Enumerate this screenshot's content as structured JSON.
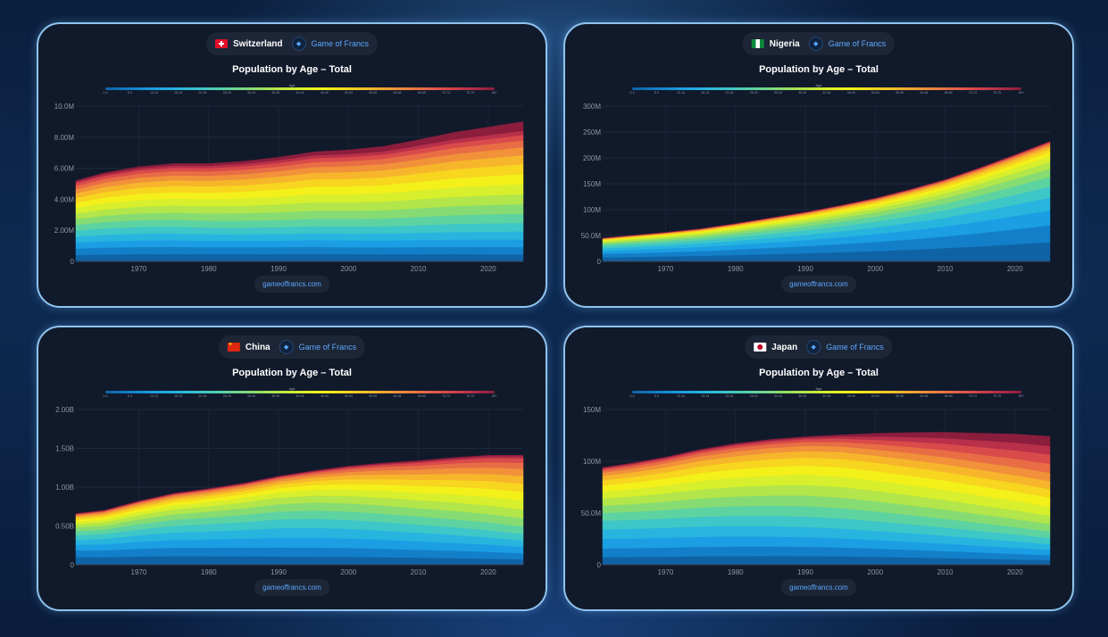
{
  "brand_label": "Game of Francs",
  "footer_url": "gameoffrancs.com",
  "chart_title": "Population by Age – Total",
  "legend_title": "Age",
  "age_groups": [
    "0-4",
    "5-9",
    "10-14",
    "15-19",
    "20-24",
    "25-29",
    "30-34",
    "35-39",
    "40-44",
    "45-49",
    "50-54",
    "55-59",
    "60-64",
    "65-69",
    "70-74",
    "75-79",
    "80+"
  ],
  "age_colors": [
    "#0f63a5",
    "#137fc8",
    "#1b9ee3",
    "#27b5e0",
    "#3ec7c8",
    "#5ed3a2",
    "#86dc72",
    "#b2e64a",
    "#d8ef2d",
    "#f4f01a",
    "#f8d51f",
    "#f7b52c",
    "#f1913a",
    "#e86d45",
    "#d94a4a",
    "#b8304a",
    "#8b1d3d"
  ],
  "chart_data": [
    {
      "country": "Switzerland",
      "type": "area",
      "stacked": true,
      "title": "Population by Age – Total",
      "x_ticks": [
        "1970",
        "1980",
        "1990",
        "2000",
        "2010",
        "2020"
      ],
      "x_range": [
        1961,
        2025
      ],
      "y_ticks": [
        "0",
        "2.00M",
        "4.00M",
        "6.00M",
        "8.00M",
        "10.0M"
      ],
      "y_range": [
        0,
        10000000
      ],
      "years": [
        1961,
        1965,
        1970,
        1975,
        1980,
        1985,
        1990,
        1995,
        2000,
        2005,
        2010,
        2015,
        2020,
        2025
      ],
      "totals": [
        5200000,
        5700000,
        6100000,
        6300000,
        6300000,
        6450000,
        6700000,
        7050000,
        7180000,
        7400000,
        7830000,
        8300000,
        8650000,
        9000000
      ],
      "shares": [
        [
          0.085,
          0.085,
          0.08,
          0.08,
          0.078,
          0.077,
          0.076,
          0.074,
          0.072,
          0.07,
          0.066,
          0.06,
          0.052,
          0.046,
          0.035,
          0.02,
          0.014
        ],
        [
          0.075,
          0.07,
          0.068,
          0.066,
          0.07,
          0.074,
          0.08,
          0.082,
          0.08,
          0.076,
          0.07,
          0.064,
          0.056,
          0.048,
          0.038,
          0.028,
          0.03
        ],
        [
          0.052,
          0.055,
          0.058,
          0.06,
          0.064,
          0.07,
          0.072,
          0.074,
          0.076,
          0.076,
          0.074,
          0.068,
          0.06,
          0.05,
          0.041,
          0.032,
          0.068
        ]
      ]
    },
    {
      "country": "Nigeria",
      "type": "area",
      "stacked": true,
      "title": "Population by Age – Total",
      "x_ticks": [
        "1970",
        "1980",
        "1990",
        "2000",
        "2010",
        "2020"
      ],
      "x_range": [
        1961,
        2025
      ],
      "y_ticks": [
        "0",
        "50.0M",
        "100M",
        "150M",
        "200M",
        "250M",
        "300M"
      ],
      "y_range": [
        0,
        300000000
      ],
      "years": [
        1961,
        1965,
        1970,
        1975,
        1980,
        1985,
        1990,
        1995,
        2000,
        2005,
        2010,
        2015,
        2020,
        2025
      ],
      "totals": [
        45000000,
        50000000,
        56000000,
        63000000,
        73000000,
        84000000,
        95000000,
        108000000,
        122000000,
        139000000,
        158000000,
        181000000,
        206000000,
        232000000
      ],
      "shares": [
        [
          0.18,
          0.15,
          0.13,
          0.11,
          0.095,
          0.08,
          0.067,
          0.055,
          0.045,
          0.035,
          0.027,
          0.02,
          0.014,
          0.01,
          0.006,
          0.003,
          0.002
        ],
        [
          0.17,
          0.148,
          0.128,
          0.11,
          0.095,
          0.082,
          0.069,
          0.057,
          0.047,
          0.037,
          0.028,
          0.021,
          0.015,
          0.011,
          0.007,
          0.004,
          0.002
        ],
        [
          0.165,
          0.145,
          0.128,
          0.11,
          0.096,
          0.083,
          0.07,
          0.058,
          0.048,
          0.038,
          0.029,
          0.022,
          0.016,
          0.011,
          0.007,
          0.004,
          0.002
        ]
      ]
    },
    {
      "country": "China",
      "type": "area",
      "stacked": true,
      "title": "Population by Age – Total",
      "x_ticks": [
        "1970",
        "1980",
        "1990",
        "2000",
        "2010",
        "2020"
      ],
      "x_range": [
        1961,
        2025
      ],
      "y_ticks": [
        "0",
        "0.50B",
        "1.00B",
        "1.50B",
        "2.00B"
      ],
      "y_range": [
        0,
        2000000000
      ],
      "years": [
        1961,
        1965,
        1970,
        1975,
        1980,
        1985,
        1990,
        1995,
        2000,
        2005,
        2010,
        2015,
        2020,
        2025
      ],
      "totals": [
        660000000,
        700000000,
        820000000,
        920000000,
        980000000,
        1050000000,
        1140000000,
        1210000000,
        1270000000,
        1310000000,
        1340000000,
        1380000000,
        1410000000,
        1410000000
      ],
      "shares": [
        [
          0.15,
          0.13,
          0.11,
          0.1,
          0.09,
          0.08,
          0.07,
          0.06,
          0.05,
          0.04,
          0.035,
          0.03,
          0.025,
          0.015,
          0.01,
          0.005,
          0.005
        ],
        [
          0.09,
          0.1,
          0.11,
          0.11,
          0.1,
          0.09,
          0.085,
          0.075,
          0.06,
          0.05,
          0.04,
          0.032,
          0.025,
          0.018,
          0.01,
          0.005,
          0.005
        ],
        [
          0.05,
          0.055,
          0.058,
          0.058,
          0.06,
          0.068,
          0.075,
          0.08,
          0.082,
          0.08,
          0.075,
          0.07,
          0.065,
          0.055,
          0.04,
          0.02,
          0.009
        ]
      ]
    },
    {
      "country": "Japan",
      "type": "area",
      "stacked": true,
      "title": "Population by Age – Total",
      "x_ticks": [
        "1970",
        "1980",
        "1990",
        "2000",
        "2010",
        "2020"
      ],
      "x_range": [
        1961,
        2025
      ],
      "y_ticks": [
        "0",
        "50.0M",
        "100M",
        "150M"
      ],
      "y_range": [
        0,
        150000000
      ],
      "years": [
        1961,
        1965,
        1970,
        1975,
        1980,
        1985,
        1990,
        1995,
        2000,
        2005,
        2010,
        2015,
        2020,
        2025
      ],
      "totals": [
        94000000,
        98000000,
        104000000,
        111500000,
        117000000,
        121000000,
        123600000,
        125400000,
        126900000,
        127700000,
        128000000,
        127100000,
        126200000,
        124000000
      ],
      "shares": [
        [
          0.08,
          0.09,
          0.1,
          0.1,
          0.09,
          0.08,
          0.075,
          0.075,
          0.07,
          0.065,
          0.055,
          0.045,
          0.035,
          0.025,
          0.015,
          0.008,
          0.005
        ],
        [
          0.065,
          0.068,
          0.07,
          0.075,
          0.078,
          0.078,
          0.08,
          0.08,
          0.078,
          0.07,
          0.06,
          0.05,
          0.04,
          0.03,
          0.02,
          0.012,
          0.006
        ],
        [
          0.036,
          0.038,
          0.042,
          0.045,
          0.048,
          0.052,
          0.058,
          0.064,
          0.07,
          0.072,
          0.066,
          0.062,
          0.065,
          0.07,
          0.072,
          0.068,
          0.074
        ]
      ]
    }
  ]
}
